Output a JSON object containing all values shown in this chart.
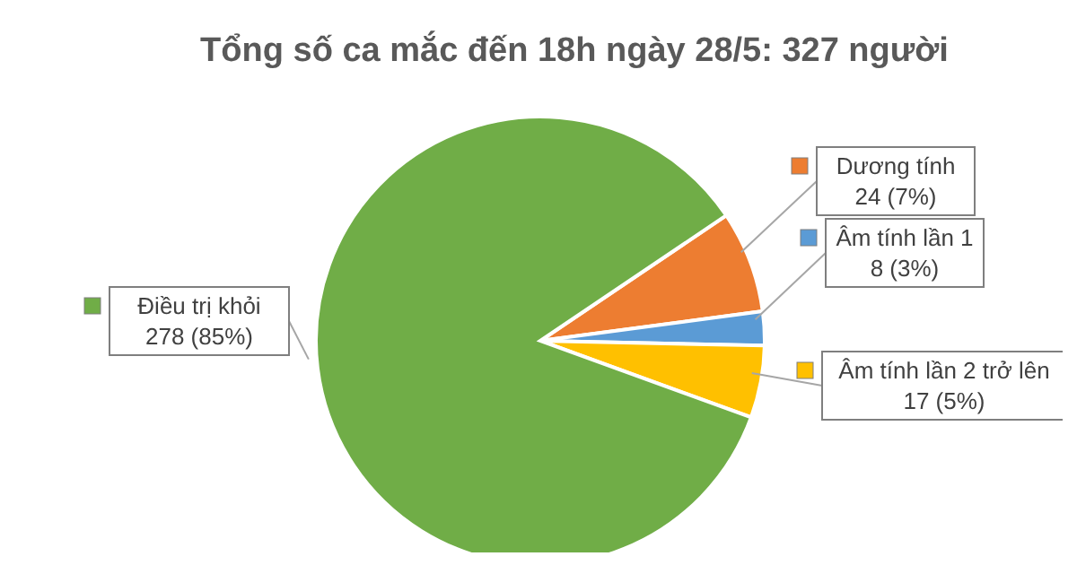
{
  "chart_data": {
    "type": "pie",
    "title": "Tổng số ca mắc đến 18h ngày 28/5: 327 người",
    "categories": [
      "Dương tính",
      "Âm tính lần 1",
      "Âm tính lần 2 trở lên",
      "Điều trị khỏi"
    ],
    "values": [
      24,
      8,
      17,
      278
    ],
    "colors": [
      "#ed7d31",
      "#5b9bd5",
      "#ffc000",
      "#70ad47"
    ],
    "value_labels": [
      "24 (7%)",
      "8 (3%)",
      "17 (5%)",
      "278 (85%)"
    ],
    "legend": "right"
  }
}
